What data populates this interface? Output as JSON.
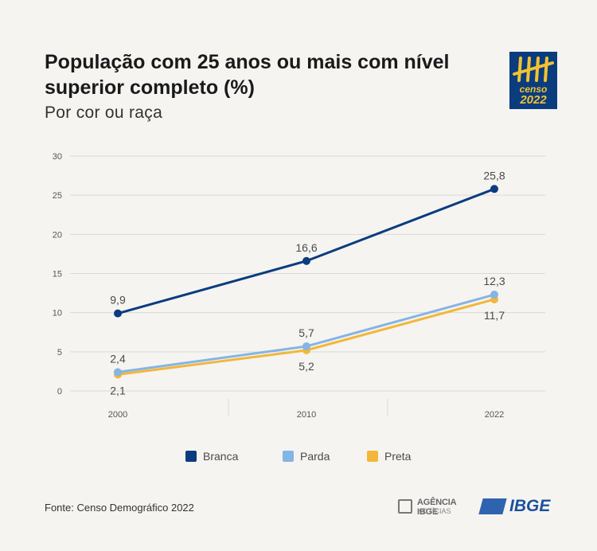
{
  "header": {
    "title": "População com 25 anos ou mais com nível superior completo (%)",
    "subtitle": "Por cor ou raça"
  },
  "logo": {
    "line1": "censo",
    "line2": "2022"
  },
  "chart_data": {
    "type": "line",
    "x": [
      "2000",
      "2010",
      "2022"
    ],
    "series": [
      {
        "name": "Branca",
        "color": "#0a3c7e",
        "values": [
          9.9,
          16.6,
          25.8
        ],
        "labels": [
          "9,9",
          "16,6",
          "25,8"
        ]
      },
      {
        "name": "Parda",
        "color": "#85b4e5",
        "values": [
          2.4,
          5.7,
          12.3
        ],
        "labels": [
          "2,4",
          "5,7",
          "12,3"
        ]
      },
      {
        "name": "Preta",
        "color": "#f2b73a",
        "values": [
          2.1,
          5.2,
          11.7
        ],
        "labels": [
          "2,1",
          "5,2",
          "11,7"
        ]
      }
    ],
    "ylim": [
      0,
      30
    ],
    "yticks": [
      0,
      5,
      10,
      15,
      20,
      25,
      30
    ],
    "xlabel": "",
    "ylabel": "",
    "grid": true,
    "legend": "bottom"
  },
  "footer": {
    "source": "Fonte: Censo Demográfico 2022",
    "agencia_line1": "AGÊNCIA IBGE",
    "agencia_line2": "NOTÍCIAS",
    "ibge": "IBGE"
  }
}
